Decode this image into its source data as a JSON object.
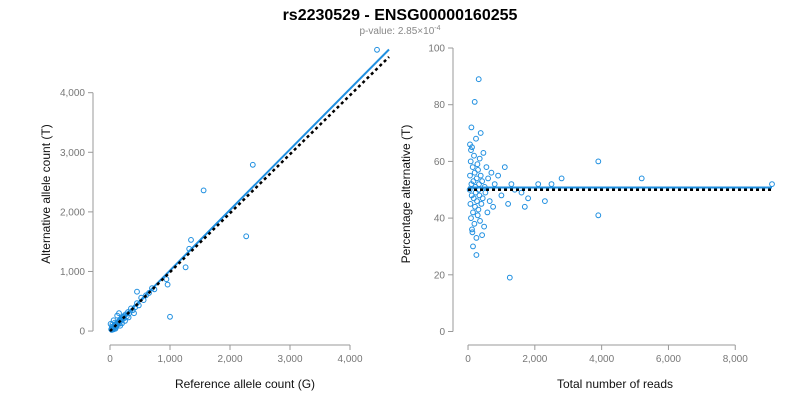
{
  "page": {
    "title": "rs2230529 - ENSG00000160255",
    "subtitle_prefix": "p-value: 2.85×10",
    "subtitle_exponent": "-4"
  },
  "colors": {
    "points": "#1f8fe0",
    "fit": "#1f8fe0",
    "reference": "#000000"
  },
  "chart_data": [
    {
      "type": "scatter",
      "xlabel": "Reference allele count (G)",
      "ylabel": "Alternative allele count (T)",
      "xlim": [
        -200,
        4700
      ],
      "ylim": [
        -150,
        4750
      ],
      "xticks": [
        0,
        1000,
        2000,
        3000,
        4000
      ],
      "xtick_labels": [
        "0",
        "1,000",
        "2,000",
        "3,000",
        "4,000"
      ],
      "yticks": [
        0,
        1000,
        2000,
        3000,
        4000
      ],
      "ytick_labels": [
        "0",
        "1,000",
        "2,000",
        "3,000",
        "4,000"
      ],
      "grid": false,
      "fit_line": {
        "x": [
          0,
          4650
        ],
        "y": [
          0,
          4725
        ]
      },
      "reference_line": {
        "x": [
          0,
          4650
        ],
        "y": [
          0,
          4600
        ]
      },
      "points": [
        [
          20,
          30
        ],
        [
          30,
          20
        ],
        [
          40,
          50
        ],
        [
          50,
          40
        ],
        [
          60,
          70
        ],
        [
          70,
          60
        ],
        [
          80,
          90
        ],
        [
          90,
          100
        ],
        [
          100,
          80
        ],
        [
          110,
          130
        ],
        [
          120,
          110
        ],
        [
          130,
          140
        ],
        [
          140,
          150
        ],
        [
          150,
          120
        ],
        [
          160,
          180
        ],
        [
          170,
          160
        ],
        [
          180,
          200
        ],
        [
          190,
          190
        ],
        [
          200,
          220
        ],
        [
          210,
          200
        ],
        [
          220,
          240
        ],
        [
          230,
          210
        ],
        [
          240,
          260
        ],
        [
          260,
          280
        ],
        [
          280,
          250
        ],
        [
          300,
          320
        ],
        [
          320,
          300
        ],
        [
          350,
          380
        ],
        [
          380,
          350
        ],
        [
          420,
          400
        ],
        [
          450,
          470
        ],
        [
          480,
          430
        ],
        [
          520,
          560
        ],
        [
          560,
          520
        ],
        [
          600,
          600
        ],
        [
          650,
          640
        ],
        [
          700,
          720
        ],
        [
          120,
          260
        ],
        [
          60,
          180
        ],
        [
          80,
          140
        ],
        [
          40,
          110
        ],
        [
          150,
          300
        ],
        [
          100,
          60
        ],
        [
          200,
          130
        ],
        [
          250,
          170
        ],
        [
          30,
          70
        ],
        [
          60,
          30
        ],
        [
          90,
          40
        ],
        [
          10,
          120
        ],
        [
          170,
          90
        ],
        [
          310,
          230
        ],
        [
          400,
          300
        ],
        [
          450,
          660
        ],
        [
          740,
          700
        ],
        [
          1000,
          240
        ],
        [
          940,
          870
        ],
        [
          960,
          780
        ],
        [
          1350,
          1530
        ],
        [
          1320,
          1380
        ],
        [
          1260,
          1070
        ],
        [
          1560,
          2360
        ],
        [
          2270,
          1590
        ],
        [
          2380,
          2790
        ],
        [
          4450,
          4720
        ]
      ]
    },
    {
      "type": "scatter",
      "xlabel": "Total number of reads",
      "ylabel": "Percentage alternative (T)",
      "xlim": [
        -300,
        9100
      ],
      "ylim": [
        -3,
        100
      ],
      "xticks": [
        0,
        2000,
        4000,
        6000,
        8000
      ],
      "xtick_labels": [
        "0",
        "2,000",
        "4,000",
        "6,000",
        "8,000"
      ],
      "yticks": [
        0,
        20,
        40,
        60,
        80,
        100
      ],
      "ytick_labels": [
        "0",
        "20",
        "40",
        "60",
        "80",
        "100"
      ],
      "grid": false,
      "fit_line": {
        "x": [
          0,
          9100
        ],
        "y": [
          50.8,
          50.8
        ]
      },
      "reference_line": {
        "x": [
          0,
          9100
        ],
        "y": [
          50,
          50
        ]
      },
      "points": [
        [
          50,
          50
        ],
        [
          60,
          55
        ],
        [
          70,
          45
        ],
        [
          80,
          60
        ],
        [
          90,
          40
        ],
        [
          100,
          52
        ],
        [
          110,
          48
        ],
        [
          120,
          65
        ],
        [
          130,
          35
        ],
        [
          140,
          58
        ],
        [
          150,
          42
        ],
        [
          160,
          53
        ],
        [
          170,
          47
        ],
        [
          180,
          62
        ],
        [
          190,
          38
        ],
        [
          200,
          56
        ],
        [
          210,
          44
        ],
        [
          220,
          51
        ],
        [
          230,
          49
        ],
        [
          240,
          68
        ],
        [
          250,
          33
        ],
        [
          260,
          54
        ],
        [
          270,
          46
        ],
        [
          280,
          59
        ],
        [
          290,
          41
        ],
        [
          300,
          57
        ],
        [
          310,
          43
        ],
        [
          320,
          50
        ],
        [
          330,
          52
        ],
        [
          340,
          48
        ],
        [
          350,
          61
        ],
        [
          360,
          39
        ],
        [
          380,
          55
        ],
        [
          400,
          45
        ],
        [
          420,
          53
        ],
        [
          440,
          47
        ],
        [
          460,
          63
        ],
        [
          480,
          37
        ],
        [
          500,
          51
        ],
        [
          520,
          49
        ],
        [
          550,
          58
        ],
        [
          580,
          42
        ],
        [
          600,
          54
        ],
        [
          650,
          46
        ],
        [
          700,
          56
        ],
        [
          750,
          44
        ],
        [
          800,
          52
        ],
        [
          100,
          72
        ],
        [
          150,
          30
        ],
        [
          200,
          81
        ],
        [
          250,
          27
        ],
        [
          320,
          89
        ],
        [
          380,
          70
        ],
        [
          120,
          36
        ],
        [
          90,
          64
        ],
        [
          60,
          66
        ],
        [
          420,
          34
        ],
        [
          900,
          55
        ],
        [
          1000,
          48
        ],
        [
          1100,
          58
        ],
        [
          1200,
          45
        ],
        [
          1250,
          19
        ],
        [
          1300,
          52
        ],
        [
          1400,
          50
        ],
        [
          1600,
          49
        ],
        [
          1700,
          44
        ],
        [
          1800,
          47
        ],
        [
          2100,
          52
        ],
        [
          2300,
          46
        ],
        [
          2500,
          52
        ],
        [
          2800,
          54
        ],
        [
          3900,
          60
        ],
        [
          3900,
          41
        ],
        [
          5200,
          54
        ],
        [
          9100,
          52
        ]
      ]
    }
  ]
}
